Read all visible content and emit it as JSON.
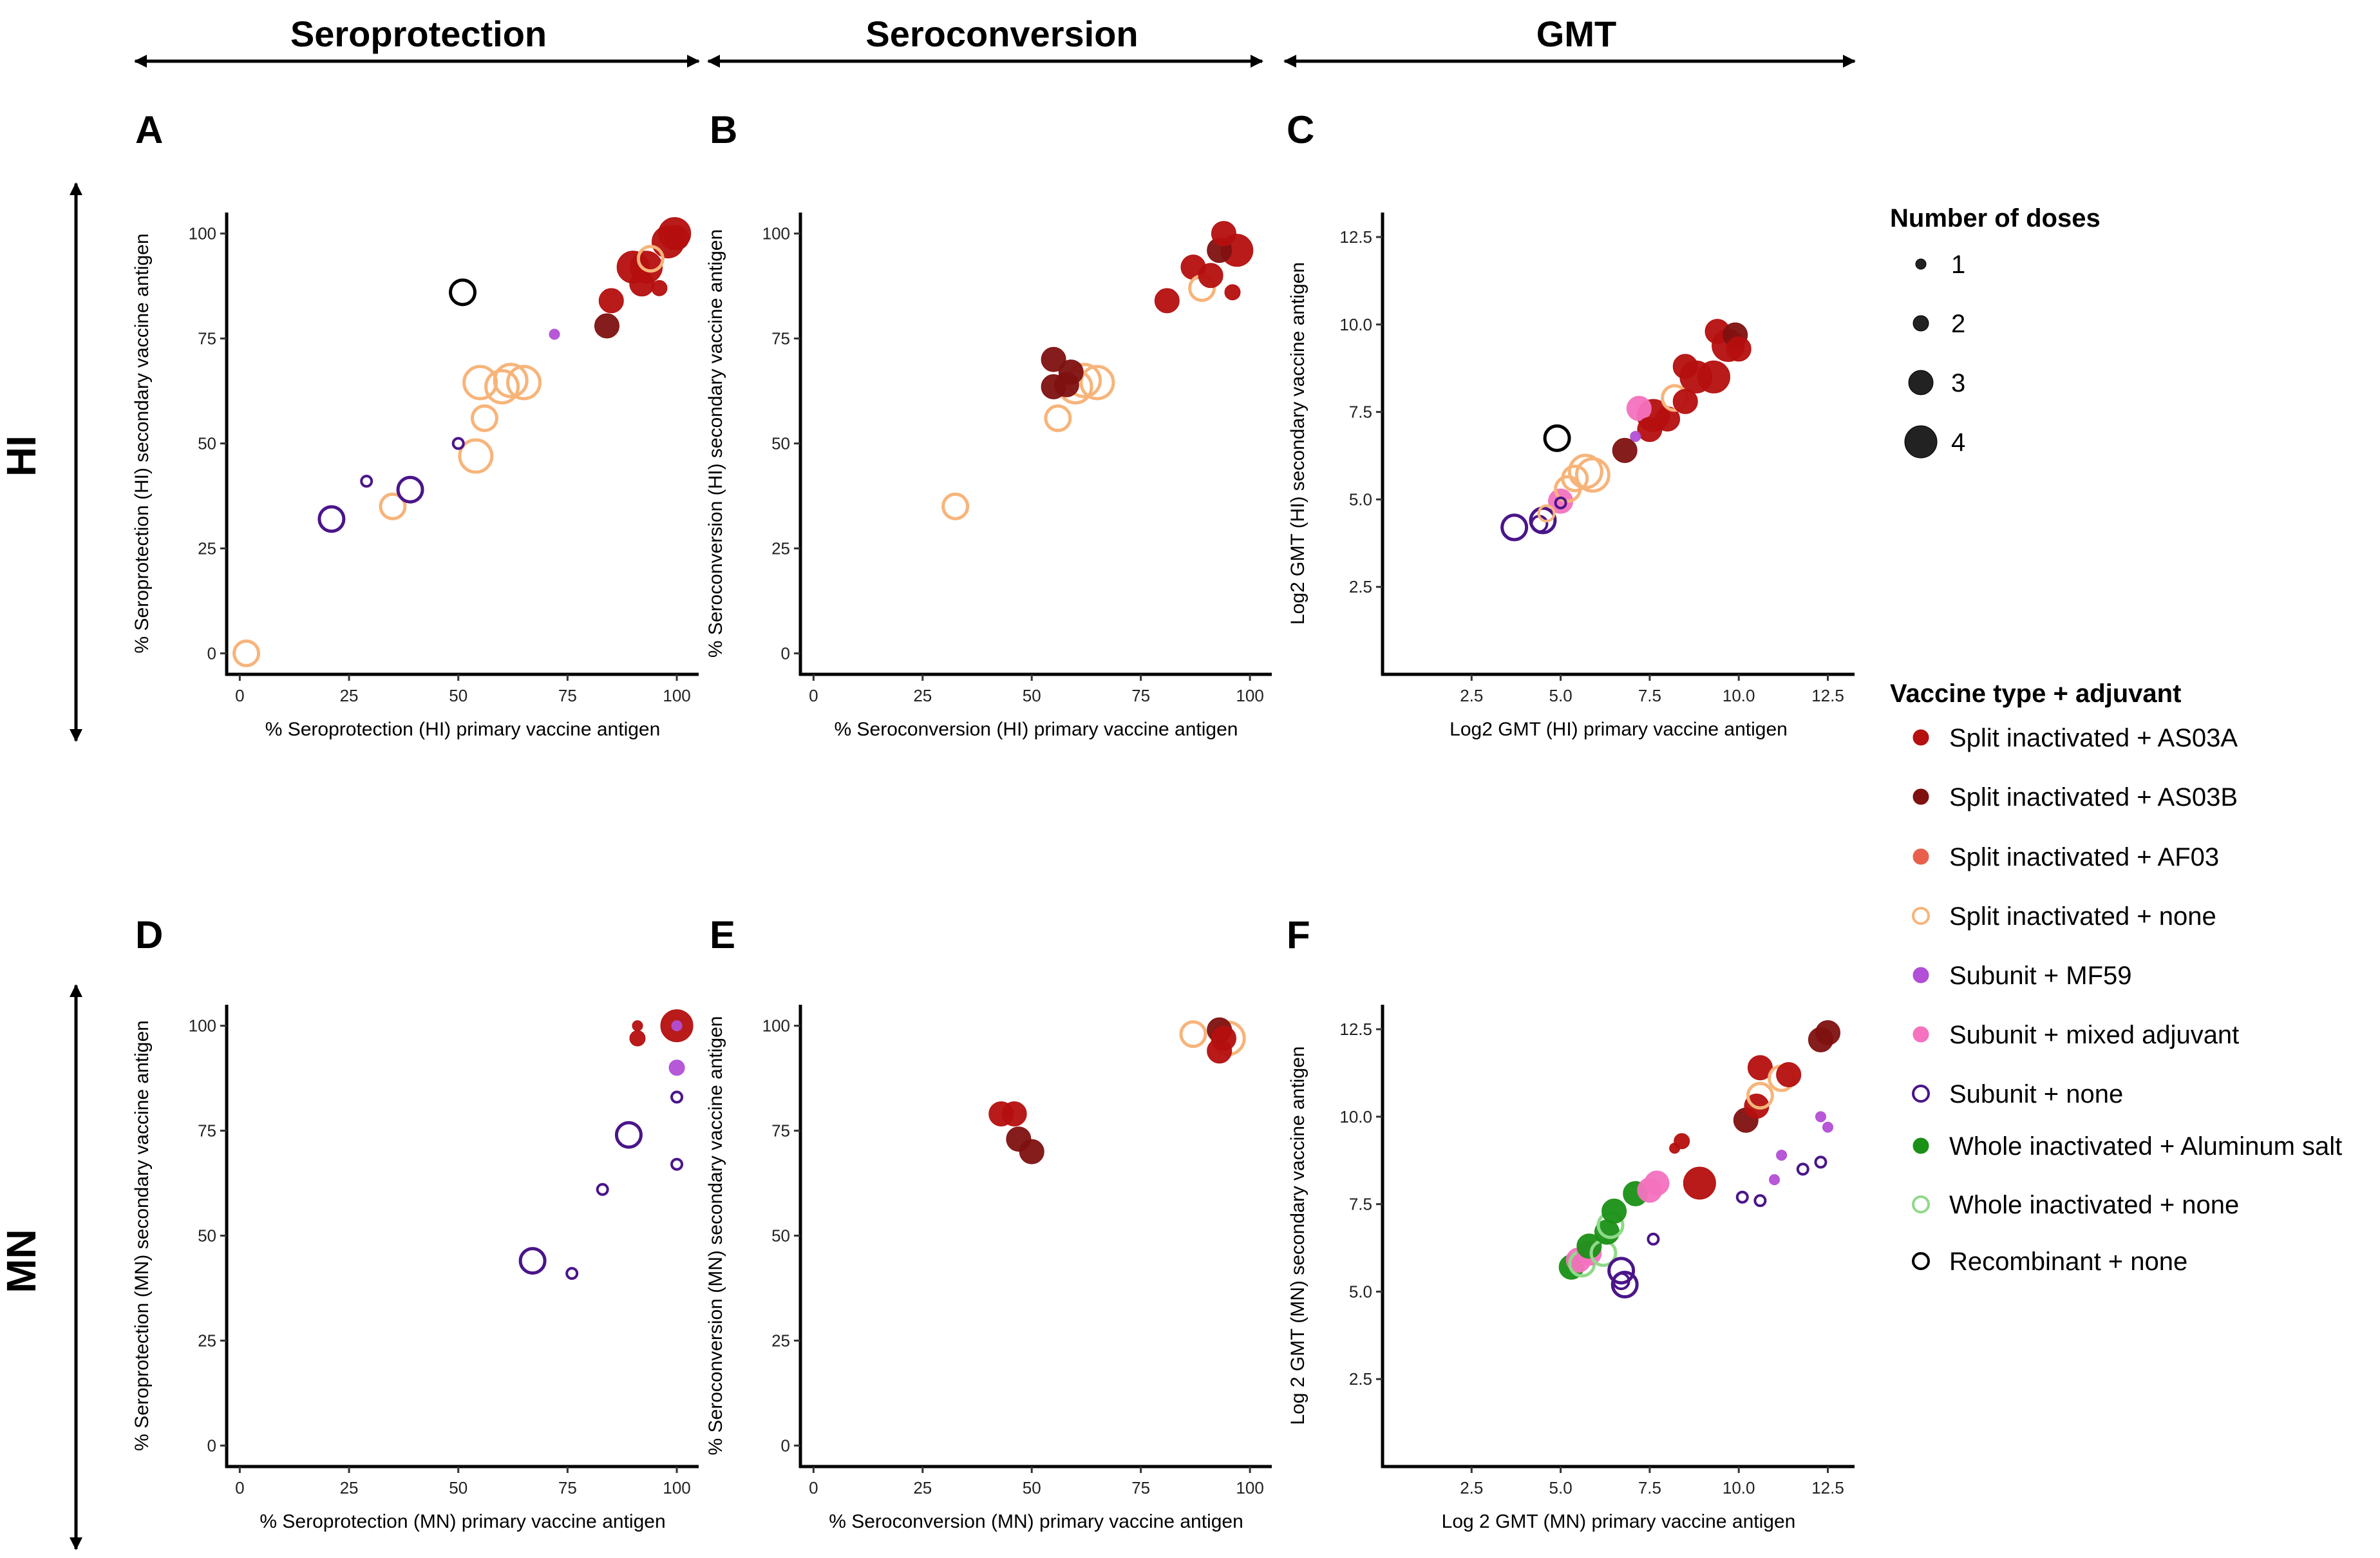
{
  "column_headers": [
    "Seroprotection",
    "Seroconversion",
    "GMT"
  ],
  "row_headers": [
    "HI",
    "MN"
  ],
  "legend": {
    "doses_title": "Number of doses",
    "doses": [
      "1",
      "2",
      "3",
      "4"
    ],
    "vaccine_title": "Vaccine type + adjuvant",
    "vaccines": [
      {
        "key": "sA",
        "label": "Split inactivated + AS03A",
        "color": "#b50f0f",
        "fill": true
      },
      {
        "key": "sB",
        "label": "Split inactivated + AS03B",
        "color": "#7f1111",
        "fill": true
      },
      {
        "key": "sAF",
        "label": "Split inactivated + AF03",
        "color": "#e8604c",
        "fill": true
      },
      {
        "key": "sN",
        "label": "Split inactivated + none",
        "color": "#f7b47a",
        "fill": false
      },
      {
        "key": "uM",
        "label": "Subunit + MF59",
        "color": "#b24fd6",
        "fill": true
      },
      {
        "key": "uX",
        "label": "Subunit + mixed adjuvant",
        "color": "#f472bf",
        "fill": true
      },
      {
        "key": "uN",
        "label": "Subunit + none",
        "color": "#4a1589",
        "fill": false
      },
      {
        "key": "wA",
        "label": "Whole inactivated + Aluminum salt",
        "color": "#1a9016",
        "fill": true
      },
      {
        "key": "wN",
        "label": "Whole inactivated + none",
        "color": "#90d98a",
        "fill": false
      },
      {
        "key": "rN",
        "label": "Recombinant + none",
        "color": "#000000",
        "fill": false
      }
    ]
  },
  "chart_data": [
    {
      "panel": "A",
      "type": "scatter",
      "xlabel": "% Seroprotection (HI) primary vaccine antigen",
      "ylabel": "% Seroprotection (HI) secondary  vaccine antigen",
      "xlim": [
        -3,
        105
      ],
      "ylim": [
        -5,
        105
      ],
      "xticks": [
        0,
        25,
        50,
        75,
        100
      ],
      "yticks": [
        0,
        25,
        50,
        75,
        100
      ],
      "points": [
        {
          "x": 1.5,
          "y": 0,
          "vaccine": "sN",
          "doses": 3
        },
        {
          "x": 21,
          "y": 32,
          "vaccine": "uN",
          "doses": 3
        },
        {
          "x": 29,
          "y": 41,
          "vaccine": "uN",
          "doses": 1
        },
        {
          "x": 35,
          "y": 35,
          "vaccine": "sN",
          "doses": 3
        },
        {
          "x": 39,
          "y": 39,
          "vaccine": "uN",
          "doses": 3
        },
        {
          "x": 50,
          "y": 50,
          "vaccine": "uN",
          "doses": 1
        },
        {
          "x": 54,
          "y": 47,
          "vaccine": "sN",
          "doses": 4
        },
        {
          "x": 56,
          "y": 56,
          "vaccine": "sN",
          "doses": 3
        },
        {
          "x": 55,
          "y": 64.5,
          "vaccine": "sN",
          "doses": 4
        },
        {
          "x": 60,
          "y": 63.5,
          "vaccine": "sN",
          "doses": 4
        },
        {
          "x": 62,
          "y": 65,
          "vaccine": "sN",
          "doses": 4
        },
        {
          "x": 65,
          "y": 64.5,
          "vaccine": "sN",
          "doses": 4
        },
        {
          "x": 72,
          "y": 76,
          "vaccine": "uM",
          "doses": 1
        },
        {
          "x": 51,
          "y": 86,
          "vaccine": "rN",
          "doses": 3
        },
        {
          "x": 84,
          "y": 78,
          "vaccine": "sB",
          "doses": 3
        },
        {
          "x": 85,
          "y": 84,
          "vaccine": "sA",
          "doses": 3
        },
        {
          "x": 90,
          "y": 92,
          "vaccine": "sA",
          "doses": 4
        },
        {
          "x": 92,
          "y": 88,
          "vaccine": "sA",
          "doses": 3
        },
        {
          "x": 94,
          "y": 94,
          "vaccine": "sN",
          "doses": 3
        },
        {
          "x": 96,
          "y": 87,
          "vaccine": "sA",
          "doses": 2
        },
        {
          "x": 93,
          "y": 92,
          "vaccine": "sA",
          "doses": 4
        },
        {
          "x": 98,
          "y": 98,
          "vaccine": "sA",
          "doses": 4
        },
        {
          "x": 99.5,
          "y": 100,
          "vaccine": "sA",
          "doses": 4
        },
        {
          "x": 100,
          "y": 99,
          "vaccine": "sA",
          "doses": 3
        }
      ]
    },
    {
      "panel": "B",
      "type": "scatter",
      "xlabel": "% Seroconversion (HI) primary vaccine antigen",
      "ylabel": "% Seroconversion (HI) secondary vaccine antigen",
      "xlim": [
        -3,
        105
      ],
      "ylim": [
        -5,
        105
      ],
      "xticks": [
        0,
        25,
        50,
        75,
        100
      ],
      "yticks": [
        0,
        25,
        50,
        75,
        100
      ],
      "points": [
        {
          "x": 32.5,
          "y": 35,
          "vaccine": "sN",
          "doses": 3
        },
        {
          "x": 55,
          "y": 63.5,
          "vaccine": "sB",
          "doses": 3
        },
        {
          "x": 55,
          "y": 70,
          "vaccine": "sB",
          "doses": 3
        },
        {
          "x": 58,
          "y": 64,
          "vaccine": "sB",
          "doses": 3
        },
        {
          "x": 59,
          "y": 67,
          "vaccine": "sB",
          "doses": 3
        },
        {
          "x": 56,
          "y": 56,
          "vaccine": "sN",
          "doses": 3
        },
        {
          "x": 60,
          "y": 63.5,
          "vaccine": "sN",
          "doses": 4
        },
        {
          "x": 62,
          "y": 65,
          "vaccine": "sN",
          "doses": 4
        },
        {
          "x": 65,
          "y": 64.5,
          "vaccine": "sN",
          "doses": 4
        },
        {
          "x": 81,
          "y": 84,
          "vaccine": "sA",
          "doses": 3
        },
        {
          "x": 87,
          "y": 92,
          "vaccine": "sA",
          "doses": 3
        },
        {
          "x": 89,
          "y": 87,
          "vaccine": "sN",
          "doses": 3
        },
        {
          "x": 91,
          "y": 90,
          "vaccine": "sA",
          "doses": 3
        },
        {
          "x": 93,
          "y": 96,
          "vaccine": "sB",
          "doses": 3
        },
        {
          "x": 94,
          "y": 100,
          "vaccine": "sA",
          "doses": 3
        },
        {
          "x": 97,
          "y": 96,
          "vaccine": "sA",
          "doses": 4
        },
        {
          "x": 96,
          "y": 86,
          "vaccine": "sA",
          "doses": 2
        }
      ]
    },
    {
      "panel": "C",
      "type": "scatter",
      "xlabel": "Log2 GMT (HI) primary vaccine antigen",
      "ylabel": "Log2 GMT (HI) secondary vaccine antigen",
      "xlim": [
        0,
        13.25
      ],
      "ylim": [
        0,
        13.2
      ],
      "xticks": [
        2.5,
        5.0,
        7.5,
        10.0,
        12.5
      ],
      "yticks": [
        2.5,
        5.0,
        7.5,
        10.0,
        12.5
      ],
      "points": [
        {
          "x": 3.7,
          "y": 4.2,
          "vaccine": "uN",
          "doses": 3
        },
        {
          "x": 4.4,
          "y": 4.3,
          "vaccine": "uN",
          "doses": 2
        },
        {
          "x": 4.5,
          "y": 4.4,
          "vaccine": "uN",
          "doses": 3
        },
        {
          "x": 4.6,
          "y": 4.6,
          "vaccine": "sN",
          "doses": 2
        },
        {
          "x": 5.0,
          "y": 4.95,
          "vaccine": "uX",
          "doses": 3
        },
        {
          "x": 5.0,
          "y": 4.9,
          "vaccine": "uN",
          "doses": 1
        },
        {
          "x": 5.2,
          "y": 5.3,
          "vaccine": "sN",
          "doses": 3
        },
        {
          "x": 5.4,
          "y": 5.6,
          "vaccine": "sN",
          "doses": 3
        },
        {
          "x": 5.7,
          "y": 5.8,
          "vaccine": "sN",
          "doses": 4
        },
        {
          "x": 5.9,
          "y": 5.7,
          "vaccine": "sN",
          "doses": 4
        },
        {
          "x": 4.9,
          "y": 6.75,
          "vaccine": "rN",
          "doses": 3
        },
        {
          "x": 6.8,
          "y": 6.4,
          "vaccine": "sB",
          "doses": 3
        },
        {
          "x": 7.1,
          "y": 6.8,
          "vaccine": "uM",
          "doses": 1
        },
        {
          "x": 7.2,
          "y": 7.6,
          "vaccine": "uX",
          "doses": 3
        },
        {
          "x": 7.5,
          "y": 7.0,
          "vaccine": "sA",
          "doses": 3
        },
        {
          "x": 7.6,
          "y": 7.4,
          "vaccine": "sA",
          "doses": 4
        },
        {
          "x": 8.0,
          "y": 7.3,
          "vaccine": "sA",
          "doses": 3
        },
        {
          "x": 8.2,
          "y": 7.9,
          "vaccine": "sN",
          "doses": 3
        },
        {
          "x": 8.5,
          "y": 7.8,
          "vaccine": "sA",
          "doses": 3
        },
        {
          "x": 8.5,
          "y": 8.8,
          "vaccine": "sA",
          "doses": 3
        },
        {
          "x": 8.8,
          "y": 8.5,
          "vaccine": "sA",
          "doses": 4
        },
        {
          "x": 9.3,
          "y": 8.5,
          "vaccine": "sA",
          "doses": 4
        },
        {
          "x": 9.4,
          "y": 9.8,
          "vaccine": "sA",
          "doses": 3
        },
        {
          "x": 9.7,
          "y": 9.4,
          "vaccine": "sA",
          "doses": 4
        },
        {
          "x": 9.9,
          "y": 9.7,
          "vaccine": "sB",
          "doses": 3
        },
        {
          "x": 10.0,
          "y": 9.3,
          "vaccine": "sA",
          "doses": 3
        }
      ]
    },
    {
      "panel": "D",
      "type": "scatter",
      "xlabel": "% Seroprotection (MN) primary vaccine antigen",
      "ylabel": "% Seroprotection (MN) secondary vaccine antigen",
      "xlim": [
        -3,
        105
      ],
      "ylim": [
        -5,
        105
      ],
      "xticks": [
        0,
        25,
        50,
        75,
        100
      ],
      "yticks": [
        0,
        25,
        50,
        75,
        100
      ],
      "points": [
        {
          "x": 67,
          "y": 44,
          "vaccine": "uN",
          "doses": 3
        },
        {
          "x": 76,
          "y": 41,
          "vaccine": "uN",
          "doses": 1
        },
        {
          "x": 83,
          "y": 61,
          "vaccine": "uN",
          "doses": 1
        },
        {
          "x": 89,
          "y": 74,
          "vaccine": "uN",
          "doses": 3
        },
        {
          "x": 91,
          "y": 100,
          "vaccine": "sA",
          "doses": 1
        },
        {
          "x": 91,
          "y": 97,
          "vaccine": "sA",
          "doses": 2
        },
        {
          "x": 100,
          "y": 100,
          "vaccine": "sA",
          "doses": 4
        },
        {
          "x": 100,
          "y": 100,
          "vaccine": "uM",
          "doses": 1
        },
        {
          "x": 100,
          "y": 90,
          "vaccine": "uM",
          "doses": 2
        },
        {
          "x": 100,
          "y": 83,
          "vaccine": "uN",
          "doses": 1
        },
        {
          "x": 100,
          "y": 67,
          "vaccine": "uN",
          "doses": 1
        }
      ]
    },
    {
      "panel": "E",
      "type": "scatter",
      "xlabel": "% Seroconversion (MN) primary vaccine antigen",
      "ylabel": "% Seroconversion (MN) secondary vaccine antigen",
      "xlim": [
        -3,
        105
      ],
      "ylim": [
        -5,
        105
      ],
      "xticks": [
        0,
        25,
        50,
        75,
        100
      ],
      "yticks": [
        0,
        25,
        50,
        75,
        100
      ],
      "points": [
        {
          "x": 43,
          "y": 79,
          "vaccine": "sA",
          "doses": 3
        },
        {
          "x": 46,
          "y": 79,
          "vaccine": "sA",
          "doses": 3
        },
        {
          "x": 47,
          "y": 73,
          "vaccine": "sB",
          "doses": 3
        },
        {
          "x": 50,
          "y": 70,
          "vaccine": "sB",
          "doses": 3
        },
        {
          "x": 87,
          "y": 98,
          "vaccine": "sN",
          "doses": 3
        },
        {
          "x": 93,
          "y": 94,
          "vaccine": "sA",
          "doses": 3
        },
        {
          "x": 93,
          "y": 99,
          "vaccine": "sB",
          "doses": 3
        },
        {
          "x": 94,
          "y": 97,
          "vaccine": "sA",
          "doses": 3
        },
        {
          "x": 95,
          "y": 97,
          "vaccine": "sN",
          "doses": 4
        }
      ]
    },
    {
      "panel": "F",
      "type": "scatter",
      "xlabel": "Log 2 GMT (MN) primary vaccine antigen",
      "ylabel": "Log 2 GMT (MN) secondary vaccine antigen",
      "xlim": [
        0,
        13.25
      ],
      "ylim": [
        0,
        13.2
      ],
      "xticks": [
        2.5,
        5.0,
        7.5,
        10.0,
        12.5
      ],
      "yticks": [
        2.5,
        5.0,
        7.5,
        10.0,
        12.5
      ],
      "points": [
        {
          "x": 5.3,
          "y": 5.7,
          "vaccine": "wA",
          "doses": 3
        },
        {
          "x": 5.5,
          "y": 5.9,
          "vaccine": "uX",
          "doses": 3
        },
        {
          "x": 5.6,
          "y": 5.8,
          "vaccine": "wN",
          "doses": 3
        },
        {
          "x": 5.8,
          "y": 6.1,
          "vaccine": "uX",
          "doses": 3
        },
        {
          "x": 5.8,
          "y": 6.3,
          "vaccine": "wA",
          "doses": 3
        },
        {
          "x": 6.2,
          "y": 6.1,
          "vaccine": "wN",
          "doses": 3
        },
        {
          "x": 6.3,
          "y": 6.7,
          "vaccine": "wA",
          "doses": 3
        },
        {
          "x": 6.4,
          "y": 6.9,
          "vaccine": "wN",
          "doses": 3
        },
        {
          "x": 6.5,
          "y": 7.3,
          "vaccine": "wA",
          "doses": 3
        },
        {
          "x": 6.7,
          "y": 5.3,
          "vaccine": "uN",
          "doses": 2
        },
        {
          "x": 6.7,
          "y": 5.6,
          "vaccine": "uN",
          "doses": 3
        },
        {
          "x": 6.8,
          "y": 5.2,
          "vaccine": "uN",
          "doses": 3
        },
        {
          "x": 7.1,
          "y": 7.8,
          "vaccine": "wA",
          "doses": 3
        },
        {
          "x": 7.5,
          "y": 7.9,
          "vaccine": "uX",
          "doses": 3
        },
        {
          "x": 7.7,
          "y": 8.1,
          "vaccine": "uX",
          "doses": 3
        },
        {
          "x": 7.6,
          "y": 6.5,
          "vaccine": "uN",
          "doses": 1
        },
        {
          "x": 8.2,
          "y": 9.1,
          "vaccine": "sA",
          "doses": 1
        },
        {
          "x": 8.4,
          "y": 9.3,
          "vaccine": "sA",
          "doses": 2
        },
        {
          "x": 8.9,
          "y": 8.1,
          "vaccine": "sA",
          "doses": 4
        },
        {
          "x": 10.1,
          "y": 7.7,
          "vaccine": "uN",
          "doses": 1
        },
        {
          "x": 10.6,
          "y": 7.6,
          "vaccine": "uN",
          "doses": 1
        },
        {
          "x": 10.2,
          "y": 9.9,
          "vaccine": "sB",
          "doses": 3
        },
        {
          "x": 10.5,
          "y": 10.3,
          "vaccine": "sA",
          "doses": 3
        },
        {
          "x": 10.6,
          "y": 11.4,
          "vaccine": "sA",
          "doses": 3
        },
        {
          "x": 10.6,
          "y": 10.6,
          "vaccine": "sN",
          "doses": 3
        },
        {
          "x": 11.0,
          "y": 8.2,
          "vaccine": "uM",
          "doses": 1
        },
        {
          "x": 11.2,
          "y": 8.9,
          "vaccine": "uM",
          "doses": 1
        },
        {
          "x": 11.2,
          "y": 11.1,
          "vaccine": "sN",
          "doses": 3
        },
        {
          "x": 11.4,
          "y": 11.2,
          "vaccine": "sA",
          "doses": 3
        },
        {
          "x": 11.8,
          "y": 8.5,
          "vaccine": "uN",
          "doses": 1
        },
        {
          "x": 12.3,
          "y": 8.7,
          "vaccine": "uN",
          "doses": 1
        },
        {
          "x": 12.3,
          "y": 10.0,
          "vaccine": "uM",
          "doses": 1
        },
        {
          "x": 12.5,
          "y": 9.7,
          "vaccine": "uM",
          "doses": 1
        },
        {
          "x": 12.3,
          "y": 12.2,
          "vaccine": "sB",
          "doses": 3
        },
        {
          "x": 12.5,
          "y": 12.4,
          "vaccine": "sB",
          "doses": 3
        }
      ]
    }
  ]
}
